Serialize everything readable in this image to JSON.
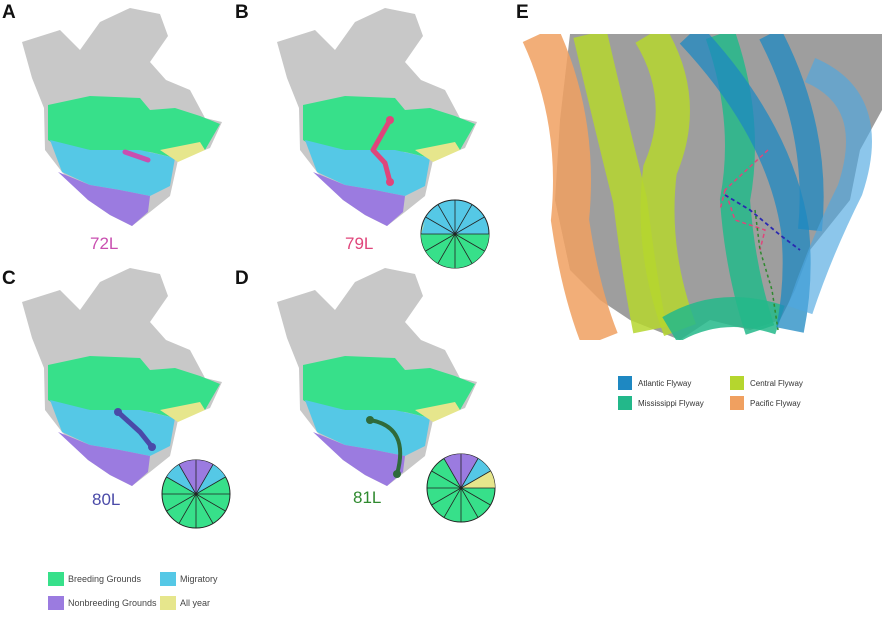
{
  "panels": [
    {
      "letter": "A",
      "bird": "72L",
      "color": "#c94fb0"
    },
    {
      "letter": "B",
      "bird": "79L",
      "color": "#e0457b"
    },
    {
      "letter": "C",
      "bird": "80L",
      "color": "#4a4aa8"
    },
    {
      "letter": "D",
      "bird": "81L",
      "color": "#2f8a2f"
    },
    {
      "letter": "E"
    }
  ],
  "range_legend": [
    {
      "label": "Breeding Grounds",
      "color": "#37e08a"
    },
    {
      "label": "Migratory",
      "color": "#55c8e6"
    },
    {
      "label": "Nonbreeding Grounds",
      "color": "#9b7be0"
    },
    {
      "label": "All year",
      "color": "#e6e68c"
    }
  ],
  "flyway_legend": [
    {
      "label": "Atlantic Flyway",
      "color": "#1e88c2"
    },
    {
      "label": "Central Flyway",
      "color": "#b5d62e"
    },
    {
      "label": "Mississippi Flyway",
      "color": "#23b88a"
    },
    {
      "label": "Pacific Flyway",
      "color": "#f0a060"
    }
  ],
  "colors": {
    "land": "#c8c8c8",
    "breeding": "#37e08a",
    "migratory": "#55c8e6",
    "nonbreeding": "#9b7be0",
    "allyear": "#e6e68c"
  }
}
